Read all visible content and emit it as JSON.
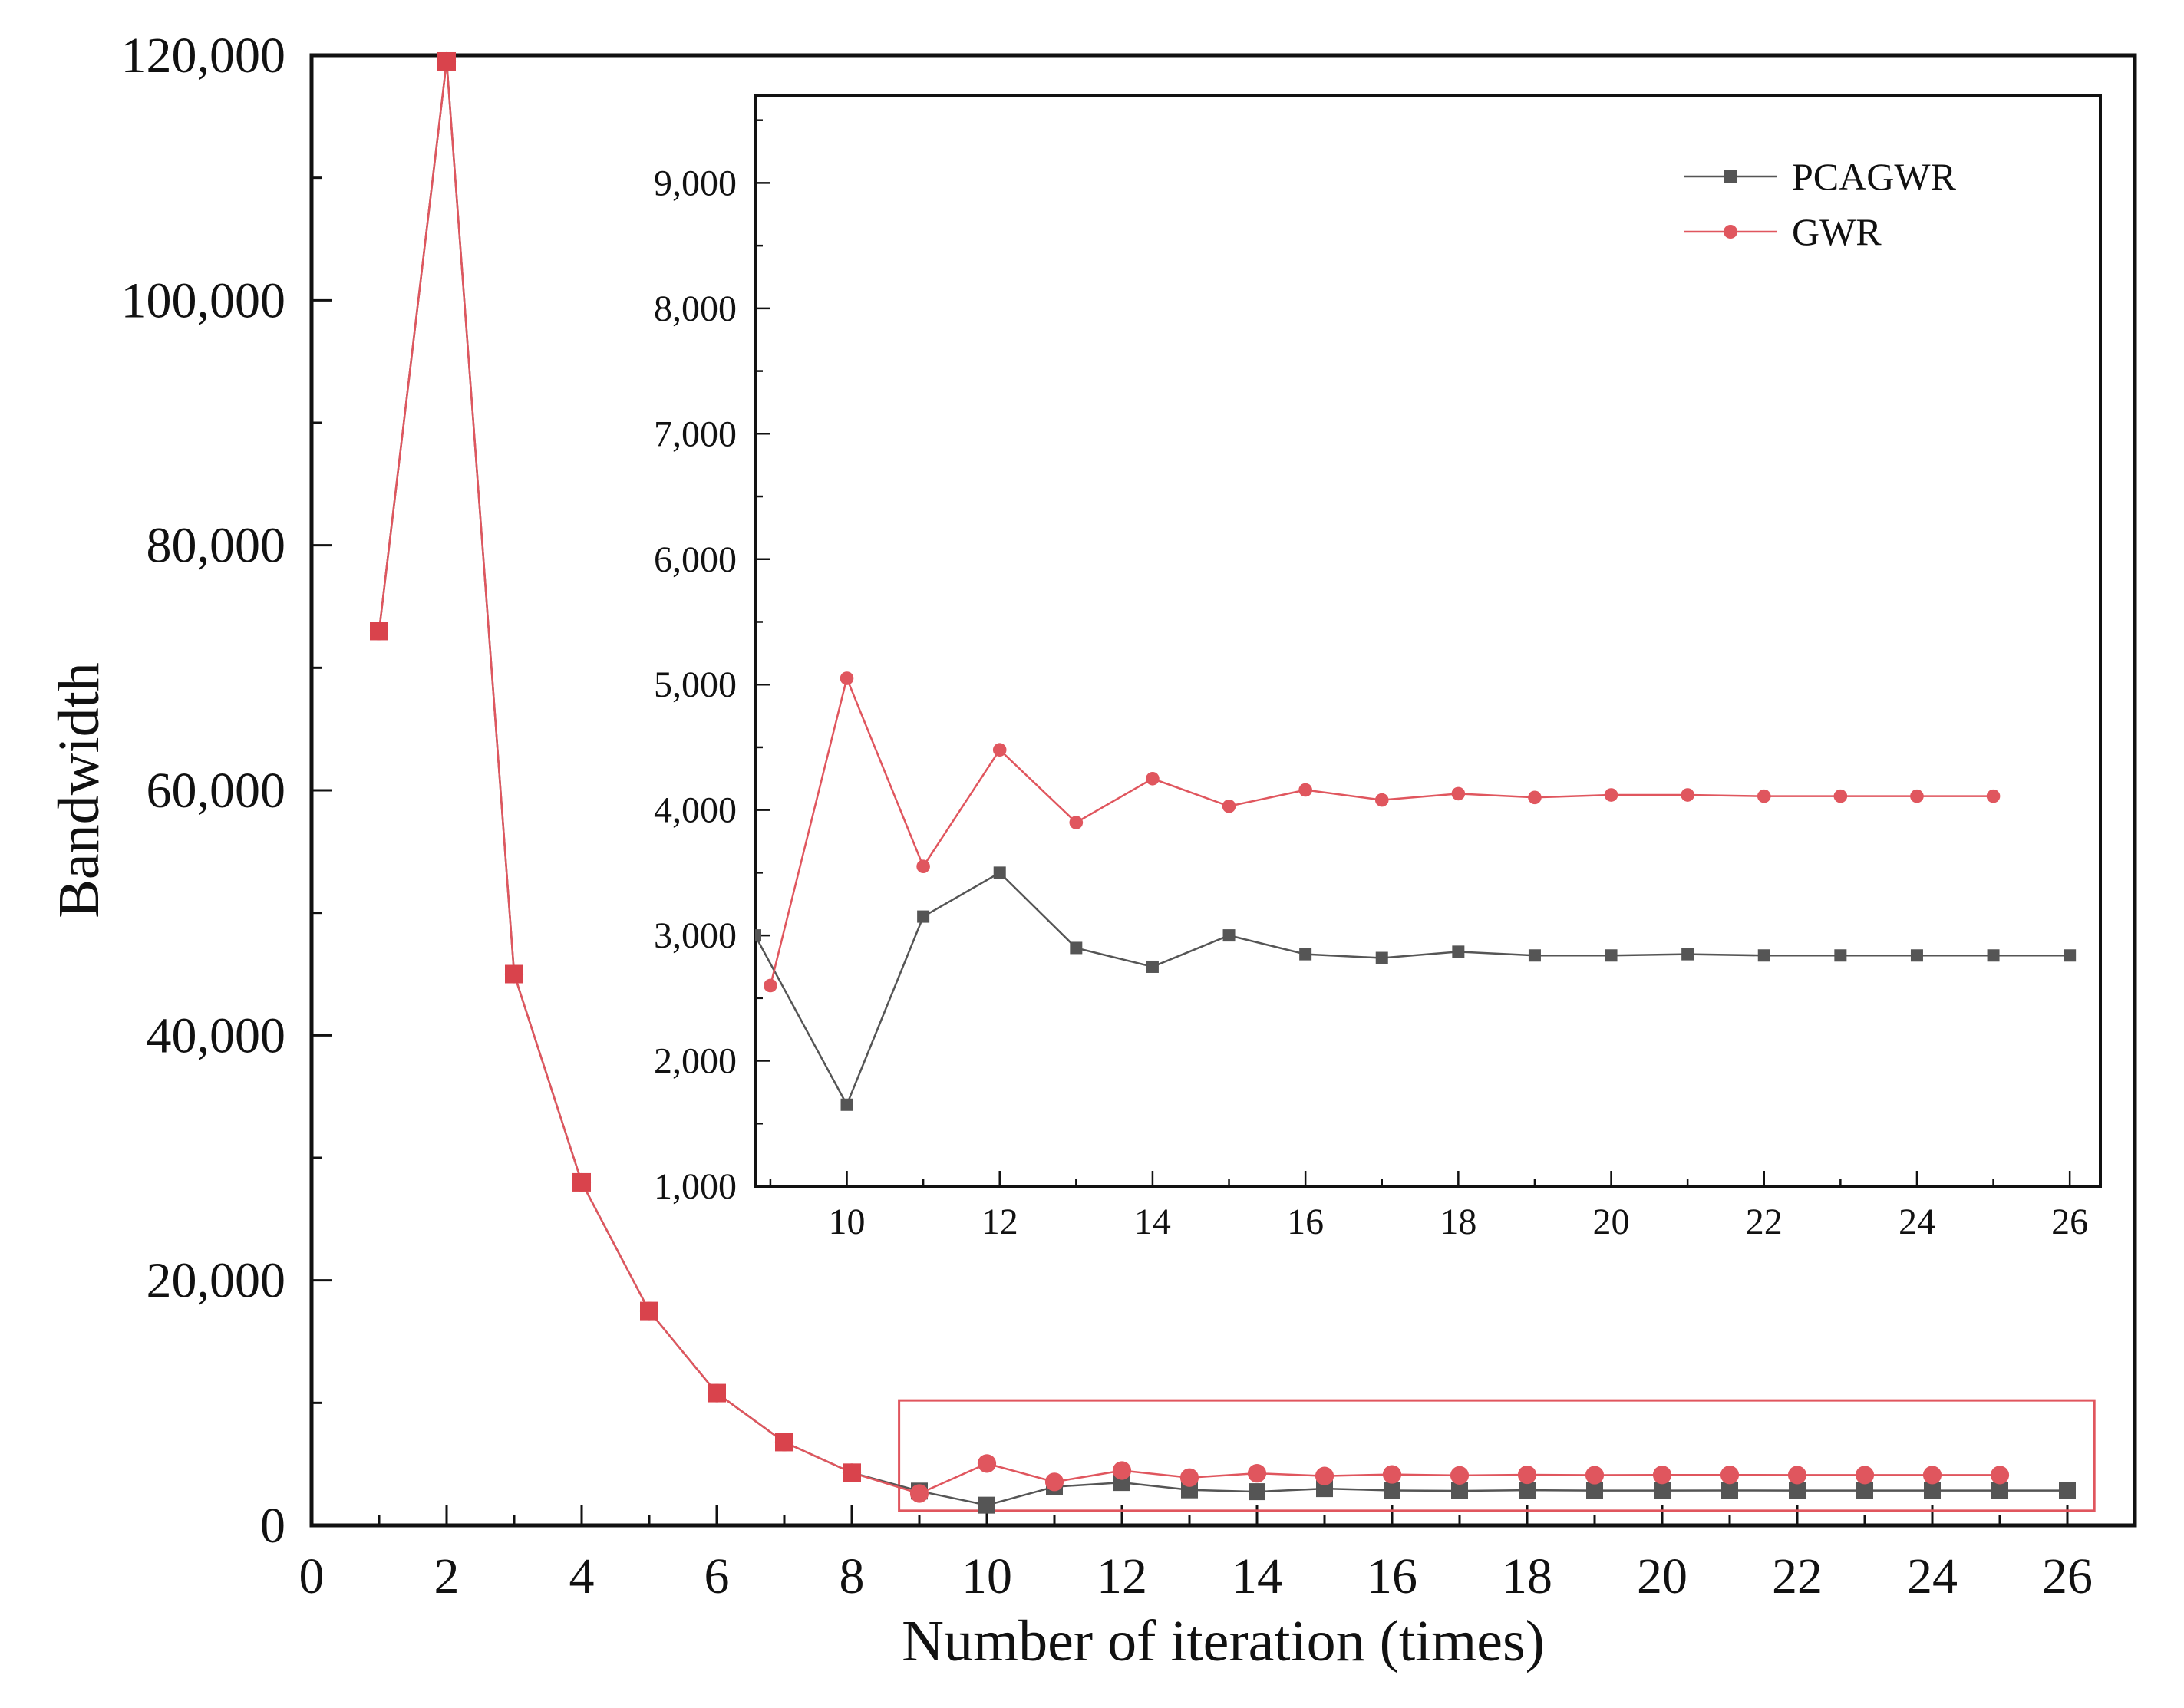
{
  "chart_data": [
    {
      "type": "line",
      "panel": "main",
      "xlabel": "Number of iteration (times)",
      "ylabel": "Bandwidth",
      "xlim": [
        0,
        27
      ],
      "ylim": [
        0,
        120000
      ],
      "x_ticks": [
        0,
        2,
        4,
        6,
        8,
        10,
        12,
        14,
        16,
        18,
        20,
        22,
        24,
        26
      ],
      "x_tick_labels": [
        "0",
        "2",
        "4",
        "6",
        "8",
        "10",
        "12",
        "14",
        "16",
        "18",
        "20",
        "22",
        "24",
        "26"
      ],
      "y_ticks": [
        0,
        20000,
        40000,
        60000,
        80000,
        100000,
        120000
      ],
      "y_tick_labels": [
        "0",
        "20,000",
        "40,000",
        "60,000",
        "80,000",
        "100,000",
        "120,000"
      ],
      "zoom_box": {
        "x": [
          8.7,
          26.4
        ],
        "y": [
          1200,
          10200
        ]
      },
      "series": [
        {
          "name": "PCAGWR",
          "color": "#555555",
          "marker": "square",
          "x": [
            1,
            2,
            3,
            4,
            5,
            6,
            7,
            8,
            9,
            10,
            11,
            12,
            13,
            14,
            15,
            16,
            17,
            18,
            19,
            20,
            21,
            22,
            23,
            24,
            25,
            26
          ],
          "values": [
            73000,
            119500,
            45000,
            28000,
            17500,
            10800,
            6800,
            4300,
            2800,
            1650,
            3150,
            3500,
            2900,
            2750,
            3000,
            2850,
            2820,
            2870,
            2840,
            2840,
            2850,
            2840,
            2840,
            2840,
            2840,
            2840
          ]
        },
        {
          "name": "GWR",
          "color": "#e0565e",
          "marker": "circle",
          "x": [
            1,
            2,
            3,
            4,
            5,
            6,
            7,
            8,
            9,
            10,
            11,
            12,
            13,
            14,
            15,
            16,
            17,
            18,
            19,
            20,
            21,
            22,
            23,
            24,
            25
          ],
          "values": [
            73000,
            119500,
            45000,
            28000,
            17500,
            10800,
            6800,
            4300,
            2600,
            5050,
            3550,
            4480,
            3900,
            4250,
            4030,
            4160,
            4080,
            4130,
            4100,
            4120,
            4120,
            4110,
            4110,
            4110,
            4110
          ]
        }
      ]
    },
    {
      "type": "line",
      "panel": "inset",
      "xlabel": "",
      "ylabel": "",
      "xlim": [
        8.8,
        26.4
      ],
      "ylim": [
        1000,
        9700
      ],
      "x_ticks": [
        10,
        12,
        14,
        16,
        18,
        20,
        22,
        24,
        26
      ],
      "x_tick_labels": [
        "10",
        "12",
        "14",
        "16",
        "18",
        "20",
        "22",
        "24",
        "26"
      ],
      "y_ticks": [
        1000,
        2000,
        3000,
        4000,
        5000,
        6000,
        7000,
        8000,
        9000
      ],
      "y_tick_labels": [
        "1,000",
        "2,000",
        "3,000",
        "4,000",
        "5,000",
        "6,000",
        "7,000",
        "8,000",
        "9,000"
      ],
      "legend": {
        "placement": "top-right",
        "entries": [
          "PCAGWR",
          "GWR"
        ]
      },
      "series": [
        {
          "name": "PCAGWR",
          "color": "#555555",
          "marker": "square",
          "x": [
            8.8,
            10,
            11,
            12,
            13,
            14,
            15,
            16,
            17,
            18,
            19,
            20,
            21,
            22,
            23,
            24,
            25,
            26
          ],
          "values": [
            3000,
            1650,
            3150,
            3500,
            2900,
            2750,
            3000,
            2850,
            2820,
            2870,
            2840,
            2840,
            2850,
            2840,
            2840,
            2840,
            2840,
            2840
          ]
        },
        {
          "name": "GWR",
          "color": "#e0565e",
          "marker": "circle",
          "x": [
            9,
            10,
            11,
            12,
            13,
            14,
            15,
            16,
            17,
            18,
            19,
            20,
            21,
            22,
            23,
            24,
            25
          ],
          "values": [
            2600,
            5050,
            3550,
            4480,
            3900,
            4250,
            4030,
            4160,
            4080,
            4130,
            4100,
            4120,
            4120,
            4110,
            4110,
            4110,
            4110
          ]
        }
      ]
    }
  ]
}
